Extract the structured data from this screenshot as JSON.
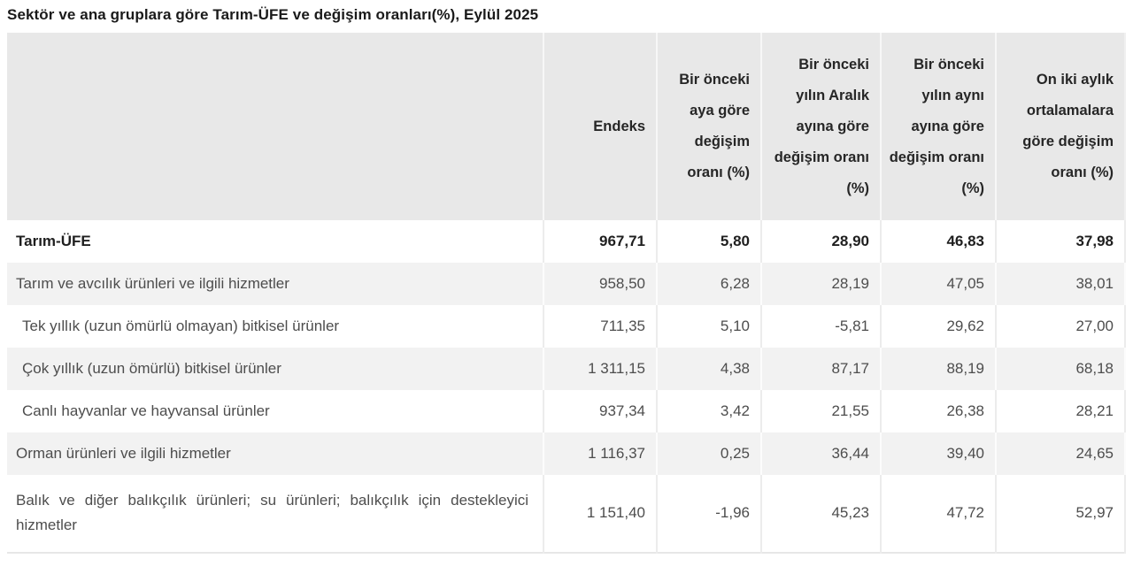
{
  "page_title": "Sektör ve ana gruplara göre Tarım-ÜFE ve değişim oranları(%), Eylül 2025",
  "chart_data": {
    "type": "table",
    "title": "Sektör ve ana gruplara göre Tarım-ÜFE ve değişim oranları(%), Eylül 2025",
    "columns": [
      "",
      "Endeks",
      "Bir önceki aya göre değişim oranı (%)",
      "Bir önceki yılın Aralık ayına göre değişim oranı (%)",
      "Bir önceki yılın aynı ayına göre değişim oranı (%)",
      "On iki aylık ortalamalara göre değişim oranı (%)"
    ],
    "rows": [
      [
        "Tarım-ÜFE",
        "967,71",
        "5,80",
        "28,90",
        "46,83",
        "37,98"
      ],
      [
        "Tarım ve avcılık ürünleri ve ilgili hizmetler",
        "958,50",
        "6,28",
        "28,19",
        "47,05",
        "38,01"
      ],
      [
        "Tek yıllık (uzun ömürlü olmayan) bitkisel ürünler",
        "711,35",
        "5,10",
        "-5,81",
        "29,62",
        "27,00"
      ],
      [
        "Çok yıllık (uzun ömürlü) bitkisel ürünler",
        "1 311,15",
        "4,38",
        "87,17",
        "88,19",
        "68,18"
      ],
      [
        "Canlı hayvanlar ve hayvansal ürünler",
        "937,34",
        "3,42",
        "21,55",
        "26,38",
        "28,21"
      ],
      [
        "Orman ürünleri ve ilgili hizmetler",
        "1 116,37",
        "0,25",
        "36,44",
        "39,40",
        "24,65"
      ],
      [
        "Balık ve diğer balıkçılık ürünleri; su ürünleri; balıkçılık için destekleyici hizmetler",
        "1 151,40",
        "-1,96",
        "45,23",
        "47,72",
        "52,97"
      ]
    ],
    "layout": {
      "header_align": "right",
      "numbers_align": "right",
      "decimal_separator": ",",
      "thousands_separator": " "
    }
  },
  "colors": {
    "page_bg": "#ffffff",
    "header_bg": "#e8e8e8",
    "alt_row_bg": "#f2f2f2",
    "text_primary": "#1f1f1f",
    "text_secondary": "#4d4d4d"
  }
}
